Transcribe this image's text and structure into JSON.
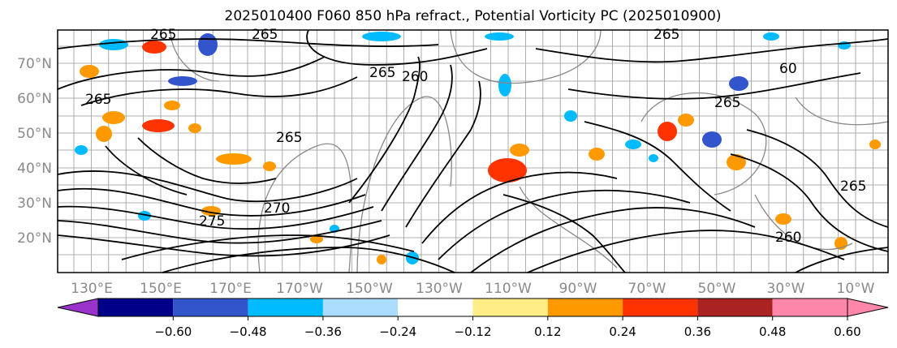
{
  "title": "2025010400 F060 850 hPa refract., Potential Vorticity PC (2025010900)",
  "map": {
    "lat_labels": [
      "70°N",
      "60°N",
      "50°N",
      "40°N",
      "30°N",
      "20°N"
    ],
    "lon_labels": [
      "130°E",
      "150°E",
      "170°E",
      "170°W",
      "150°W",
      "130°W",
      "110°W",
      "90°W",
      "70°W",
      "50°W",
      "30°W",
      "10°W"
    ],
    "contour_labels": [
      "265",
      "265",
      "265",
      "265",
      "260",
      "265",
      "265",
      "270",
      "275",
      "265",
      "260",
      "265",
      "60"
    ]
  },
  "colorbar": {
    "ticks": [
      "−0.60",
      "−0.48",
      "−0.36",
      "−0.24",
      "−0.12",
      "0.12",
      "0.24",
      "0.36",
      "0.48",
      "0.60"
    ],
    "colors": [
      "#9933cc",
      "#000088",
      "#3355cc",
      "#00bbff",
      "#aaddff",
      "#ffffff",
      "#ffee88",
      "#ff9900",
      "#ff3300",
      "#aa2222",
      "#ff88aa",
      "#ff88aa"
    ]
  }
}
